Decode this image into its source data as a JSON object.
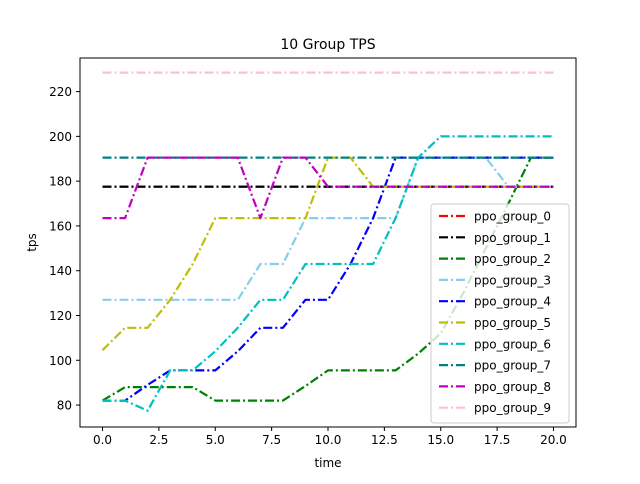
{
  "chart_data": {
    "type": "line",
    "title": "10 Group TPS",
    "xlabel": "time",
    "ylabel": "tps",
    "xlim": [
      -1.0,
      21.0
    ],
    "ylim": [
      70.2,
      235.0
    ],
    "xticks": [
      0.0,
      2.5,
      5.0,
      7.5,
      10.0,
      12.5,
      15.0,
      17.5,
      20.0
    ],
    "xtick_labels": [
      "0.0",
      "2.5",
      "5.0",
      "7.5",
      "10.0",
      "12.5",
      "15.0",
      "17.5",
      "20.0"
    ],
    "yticks": [
      80,
      100,
      120,
      140,
      160,
      180,
      200,
      220
    ],
    "ytick_labels": [
      "80",
      "100",
      "120",
      "140",
      "160",
      "180",
      "200",
      "220"
    ],
    "grid": false,
    "legend_position": "lower-right",
    "line_style": "dash-dot",
    "x": [
      0,
      1,
      2,
      3,
      4,
      5,
      6,
      7,
      8,
      9,
      10,
      11,
      12,
      13,
      14,
      15,
      16,
      17,
      18,
      19,
      20
    ],
    "series": [
      {
        "name": "ppo_group_0",
        "color": "#ff0000",
        "values": [
          177.5,
          177.5,
          177.5,
          177.5,
          177.5,
          177.5,
          177.5,
          177.5,
          177.5,
          177.5,
          177.5,
          177.5,
          177.5,
          177.5,
          177.5,
          177.5,
          177.5,
          177.5,
          177.5,
          177.5,
          177.5
        ]
      },
      {
        "name": "ppo_group_1",
        "color": "#000000",
        "values": [
          177.5,
          177.5,
          177.5,
          177.5,
          177.5,
          177.5,
          177.5,
          177.5,
          177.5,
          177.5,
          177.5,
          177.5,
          177.5,
          177.5,
          177.5,
          177.5,
          177.5,
          177.5,
          177.5,
          177.5,
          177.5
        ]
      },
      {
        "name": "ppo_group_2",
        "color": "#008000",
        "values": [
          82,
          88,
          88,
          88,
          88,
          82,
          82,
          82,
          82,
          88.5,
          95.5,
          95.5,
          95.5,
          95.5,
          103,
          112,
          130,
          150,
          170,
          190.5,
          190.5
        ]
      },
      {
        "name": "ppo_group_3",
        "color": "#87ceeb",
        "values": [
          127,
          127,
          127,
          127,
          127,
          127,
          127,
          143,
          143,
          163.5,
          163.5,
          163.5,
          163.5,
          163.5,
          190.5,
          190.5,
          190.5,
          190.5,
          177.5,
          177.5,
          177.5
        ]
      },
      {
        "name": "ppo_group_4",
        "color": "#0000ff",
        "values": [
          82,
          82,
          89,
          95.5,
          95.5,
          95.5,
          104,
          114.5,
          114.5,
          127,
          127,
          143,
          163.5,
          190.5,
          190.5,
          190.5,
          190.5,
          190.5,
          190.5,
          190.5,
          190.5
        ]
      },
      {
        "name": "ppo_group_5",
        "color": "#bfbf00",
        "values": [
          104.5,
          114.5,
          114.5,
          127,
          143,
          163.5,
          163.5,
          163.5,
          163.5,
          163.5,
          190.5,
          190.5,
          177.5,
          177.5,
          177.5,
          177.5,
          177.5,
          177.5,
          177.5,
          177.5,
          177.5
        ]
      },
      {
        "name": "ppo_group_6",
        "color": "#00bfbf",
        "values": [
          82,
          82,
          77.5,
          95.5,
          95.5,
          104,
          114.5,
          127,
          127,
          143,
          143,
          143,
          143,
          163.5,
          190.5,
          200,
          200,
          200,
          200,
          200,
          200
        ]
      },
      {
        "name": "ppo_group_7",
        "color": "#008080",
        "values": [
          190.5,
          190.5,
          190.5,
          190.5,
          190.5,
          190.5,
          190.5,
          190.5,
          190.5,
          190.5,
          190.5,
          190.5,
          190.5,
          190.5,
          190.5,
          190.5,
          190.5,
          190.5,
          190.5,
          190.5,
          190.5
        ]
      },
      {
        "name": "ppo_group_8",
        "color": "#bf00bf",
        "values": [
          163.5,
          163.5,
          190.5,
          190.5,
          190.5,
          190.5,
          190.5,
          163.5,
          190.5,
          190.5,
          177.5,
          177.5,
          177.5,
          177.5,
          177.5,
          177.5,
          177.5,
          177.5,
          177.5,
          177.5,
          177.5
        ]
      },
      {
        "name": "ppo_group_9",
        "color": "#ffc0cb",
        "values": [
          228.5,
          228.5,
          228.5,
          228.5,
          228.5,
          228.5,
          228.5,
          228.5,
          228.5,
          228.5,
          228.5,
          228.5,
          228.5,
          228.5,
          228.5,
          228.5,
          228.5,
          228.5,
          228.5,
          228.5,
          228.5
        ]
      }
    ]
  }
}
